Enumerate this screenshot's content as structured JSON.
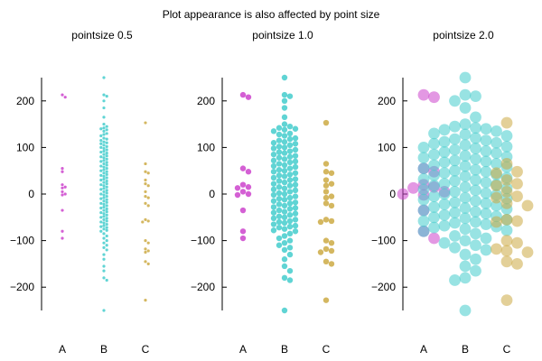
{
  "chart_data": {
    "type": "scatter",
    "title": "Plot appearance is also affected by point size",
    "ylim": [
      -250,
      250
    ],
    "yticks": [
      -200,
      -100,
      0,
      100,
      200
    ],
    "categories": [
      "A",
      "B",
      "C"
    ],
    "colors": {
      "A": "#cc44cc",
      "B": "#44cccc",
      "C": "#ccaa44"
    },
    "axis_style": "y-axis line only, no grid, no box",
    "series": [
      {
        "category": "A",
        "values": [
          213,
          208,
          55,
          48,
          20,
          15,
          13,
          5,
          0,
          -2,
          -35,
          -80,
          -95
        ]
      },
      {
        "category": "B",
        "values": [
          250,
          213,
          210,
          200,
          185,
          165,
          150,
          145,
          142,
          140,
          138,
          135,
          130,
          128,
          125,
          120,
          118,
          115,
          112,
          110,
          108,
          105,
          102,
          100,
          98,
          95,
          92,
          90,
          88,
          85,
          82,
          80,
          78,
          75,
          72,
          70,
          68,
          65,
          62,
          60,
          58,
          55,
          52,
          50,
          48,
          45,
          42,
          40,
          38,
          35,
          32,
          30,
          28,
          25,
          22,
          20,
          18,
          15,
          12,
          10,
          8,
          5,
          2,
          0,
          -2,
          -5,
          -8,
          -10,
          -12,
          -15,
          -18,
          -20,
          -22,
          -25,
          -28,
          -30,
          -32,
          -35,
          -38,
          -40,
          -42,
          -45,
          -48,
          -50,
          -52,
          -55,
          -58,
          -60,
          -62,
          -65,
          -68,
          -70,
          -72,
          -75,
          -78,
          -80,
          -85,
          -90,
          -95,
          -100,
          -105,
          -110,
          -115,
          -120,
          -130,
          -140,
          -155,
          -165,
          -180,
          -185,
          -250
        ]
      },
      {
        "category": "C",
        "values": [
          153,
          65,
          48,
          45,
          30,
          22,
          18,
          5,
          -5,
          -8,
          -20,
          -25,
          -55,
          -58,
          -60,
          -100,
          -105,
          -118,
          -122,
          -125,
          -145,
          -150,
          -228
        ]
      }
    ],
    "panels": [
      {
        "title": "pointsize 0.5",
        "pointsize": 0.5
      },
      {
        "title": "pointsize 1.0",
        "pointsize": 1.0
      },
      {
        "title": "pointsize 2.0",
        "pointsize": 2.0
      }
    ]
  }
}
